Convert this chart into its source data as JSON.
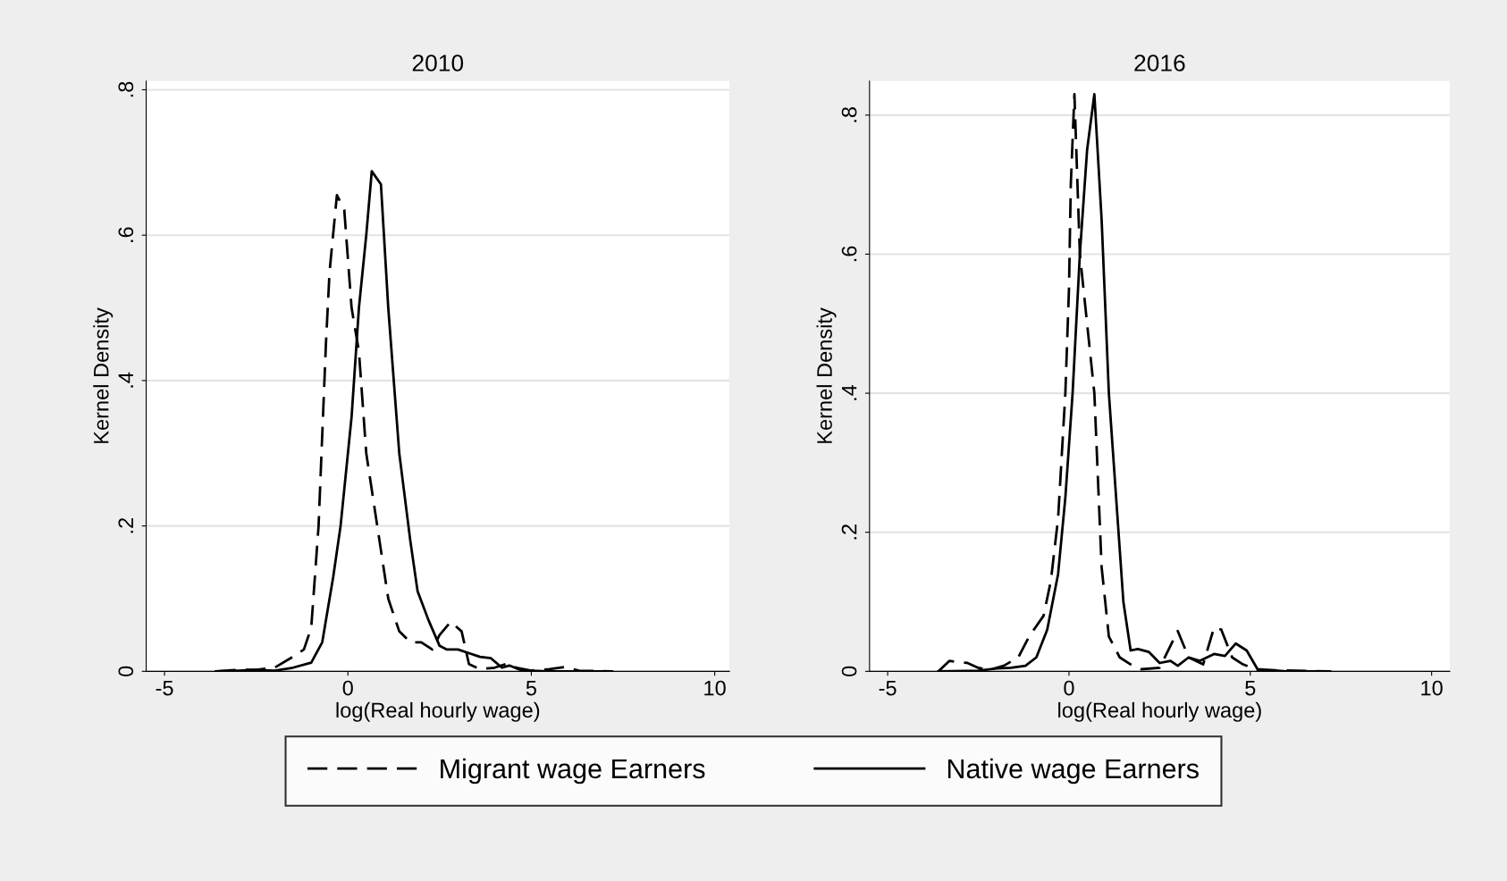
{
  "chart_data": [
    {
      "type": "line",
      "title": "2010",
      "xlabel": "log(Real hourly wage)",
      "ylabel": "Kernel Density",
      "xlim": [
        -5.5,
        10.4
      ],
      "xticks": [
        -5,
        0,
        5,
        10
      ],
      "ylim": [
        0,
        0.812
      ],
      "yticks": [
        {
          "value": 0,
          "label": "0"
        },
        {
          "value": 0.2,
          "label": ".2"
        },
        {
          "value": 0.4,
          "label": ".4"
        },
        {
          "value": 0.6,
          "label": ".6"
        },
        {
          "value": 0.8,
          "label": ".8"
        }
      ],
      "grid": "y",
      "legend": "bottom",
      "series": [
        {
          "name": "Migrant wage Earners",
          "color": "#000000",
          "line_style": "dashed",
          "x": [
            -3.6,
            -3.0,
            -2.5,
            -2.0,
            -1.5,
            -1.2,
            -1.0,
            -0.8,
            -0.6,
            -0.5,
            -0.3,
            -0.1,
            0.1,
            0.3,
            0.5,
            0.8,
            1.1,
            1.4,
            1.7,
            2.0,
            2.3,
            2.5,
            2.8,
            3.1,
            3.3,
            3.6,
            4.0,
            4.3,
            4.6,
            5.0,
            5.5,
            5.9,
            6.3,
            7.2
          ],
          "values": [
            0,
            0.002,
            0.002,
            0.005,
            0.02,
            0.03,
            0.06,
            0.2,
            0.45,
            0.55,
            0.655,
            0.635,
            0.5,
            0.44,
            0.3,
            0.2,
            0.1,
            0.055,
            0.04,
            0.04,
            0.03,
            0.05,
            0.068,
            0.055,
            0.01,
            0.003,
            0.005,
            0.01,
            0.005,
            0.001,
            0.003,
            0.006,
            0.001,
            0
          ]
        },
        {
          "name": "Native wage Earners",
          "color": "#000000",
          "line_style": "solid",
          "x": [
            -3.6,
            -3.0,
            -2.5,
            -2.0,
            -1.5,
            -1.0,
            -0.7,
            -0.4,
            -0.2,
            0.1,
            0.3,
            0.5,
            0.65,
            0.9,
            1.1,
            1.4,
            1.7,
            1.9,
            2.2,
            2.5,
            2.7,
            3.0,
            3.3,
            3.6,
            3.9,
            4.2,
            4.4,
            4.7,
            5.0,
            5.5,
            7.2
          ],
          "values": [
            0,
            0.001,
            0.002,
            0.001,
            0.005,
            0.012,
            0.04,
            0.13,
            0.2,
            0.35,
            0.5,
            0.6,
            0.688,
            0.67,
            0.5,
            0.3,
            0.18,
            0.11,
            0.07,
            0.035,
            0.03,
            0.03,
            0.025,
            0.02,
            0.018,
            0.005,
            0.008,
            0.002,
            0.001,
            0,
            0
          ]
        }
      ]
    },
    {
      "type": "line",
      "title": "2016",
      "xlabel": "log(Real hourly wage)",
      "ylabel": "Kernel Density",
      "xlim": [
        -5.5,
        10.5
      ],
      "xticks": [
        -5,
        0,
        5,
        10
      ],
      "ylim": [
        0,
        0.849
      ],
      "yticks": [
        {
          "value": 0,
          "label": "0"
        },
        {
          "value": 0.2,
          "label": ".2"
        },
        {
          "value": 0.4,
          "label": ".4"
        },
        {
          "value": 0.6,
          "label": ".6"
        },
        {
          "value": 0.8,
          "label": ".8"
        }
      ],
      "grid": "y",
      "legend": "bottom",
      "series": [
        {
          "name": "Migrant wage Earners",
          "color": "#000000",
          "line_style": "dashed",
          "x": [
            -3.6,
            -3.3,
            -2.8,
            -2.5,
            -2.2,
            -1.8,
            -1.4,
            -1.1,
            -0.7,
            -0.5,
            -0.3,
            -0.1,
            0.0,
            0.05,
            0.15,
            0.3,
            0.5,
            0.7,
            0.9,
            1.1,
            1.4,
            1.7,
            2.0,
            2.5,
            3.0,
            3.3,
            3.7,
            4.0,
            4.2,
            4.5,
            4.8,
            5.2,
            7.2
          ],
          "values": [
            0,
            0.015,
            0.012,
            0.005,
            0.002,
            0.008,
            0.02,
            0.05,
            0.08,
            0.13,
            0.22,
            0.4,
            0.55,
            0.7,
            0.83,
            0.6,
            0.5,
            0.4,
            0.15,
            0.05,
            0.02,
            0.01,
            0.003,
            0.005,
            0.058,
            0.02,
            0.01,
            0.063,
            0.06,
            0.02,
            0.01,
            0.002,
            0
          ]
        },
        {
          "name": "Native wage Earners",
          "color": "#000000",
          "line_style": "solid",
          "x": [
            -3.6,
            -2.5,
            -2.0,
            -1.6,
            -1.2,
            -0.9,
            -0.6,
            -0.3,
            -0.1,
            0.1,
            0.3,
            0.5,
            0.7,
            0.9,
            1.1,
            1.3,
            1.5,
            1.7,
            1.9,
            2.2,
            2.5,
            2.8,
            3.0,
            3.3,
            3.6,
            4.0,
            4.3,
            4.6,
            4.9,
            5.2,
            6.0,
            7.2
          ],
          "values": [
            0,
            0.001,
            0.004,
            0.005,
            0.008,
            0.02,
            0.06,
            0.14,
            0.25,
            0.4,
            0.6,
            0.75,
            0.83,
            0.65,
            0.4,
            0.25,
            0.1,
            0.03,
            0.032,
            0.028,
            0.012,
            0.015,
            0.008,
            0.02,
            0.015,
            0.025,
            0.022,
            0.04,
            0.03,
            0.003,
            0,
            0
          ]
        }
      ]
    }
  ]
}
